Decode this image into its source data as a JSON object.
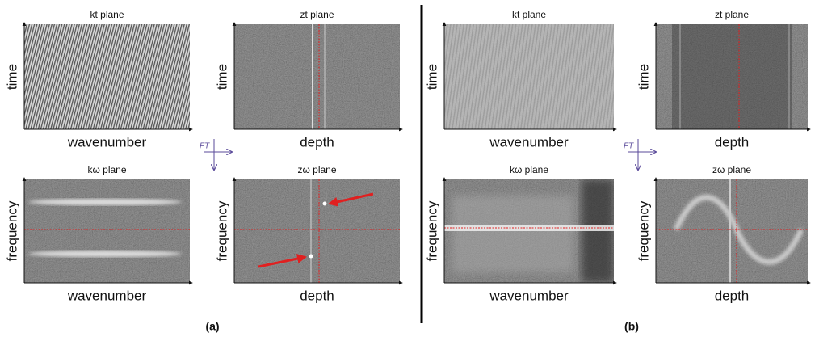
{
  "panels": [
    {
      "label": "(a)",
      "ft": "FT",
      "plots": [
        {
          "title": "kt plane",
          "xlabel": "wavenumber",
          "ylabel": "time"
        },
        {
          "title": "zt plane",
          "xlabel": "depth",
          "ylabel": "time"
        },
        {
          "title": "kω plane",
          "xlabel": "wavenumber",
          "ylabel": "frequency"
        },
        {
          "title": "zω plane",
          "xlabel": "depth",
          "ylabel": "frequency"
        }
      ]
    },
    {
      "label": "(b)",
      "ft": "FT",
      "plots": [
        {
          "title": "kt plane",
          "xlabel": "wavenumber",
          "ylabel": "time"
        },
        {
          "title": "zt plane",
          "xlabel": "depth",
          "ylabel": "time"
        },
        {
          "title": "kω plane",
          "xlabel": "wavenumber",
          "ylabel": "frequency"
        },
        {
          "title": "zω plane",
          "xlabel": "depth",
          "ylabel": "frequency"
        }
      ]
    }
  ]
}
